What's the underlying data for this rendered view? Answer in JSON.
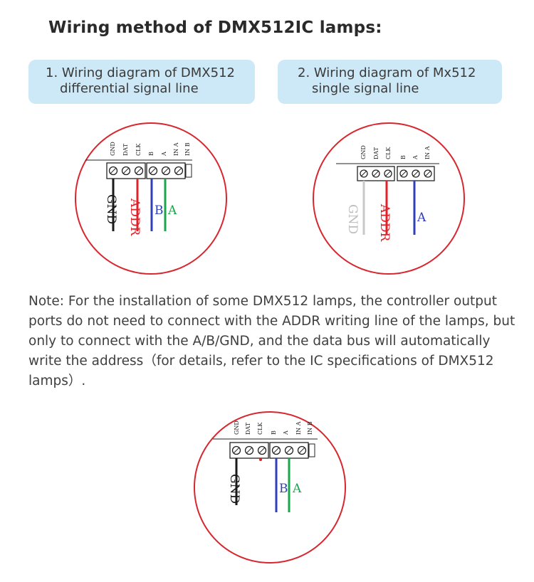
{
  "title": "Wiring method of DMX512IC lamps:",
  "diagram1": {
    "caption_line1": "1. Wiring diagram of DMX512",
    "caption_line2": "differential signal line",
    "terminals": [
      "GND",
      "DAT",
      "CLK",
      "B",
      "A",
      "IN A",
      "IN B"
    ],
    "wires": [
      {
        "label": "GND",
        "color": "#1a1a1a"
      },
      {
        "label": "ADDR",
        "color": "#e0222b"
      },
      {
        "label": "B",
        "color": "#2f3fb8"
      },
      {
        "label": "A",
        "color": "#1aa64a"
      }
    ]
  },
  "diagram2": {
    "caption_line1": "2. Wiring diagram of Mx512",
    "caption_line2": "single signal line",
    "terminals": [
      "GND",
      "DAT",
      "CLK",
      "B",
      "A",
      "IN A"
    ],
    "wires": [
      {
        "label": "GND",
        "color": "#c8c8c8"
      },
      {
        "label": "ADDR",
        "color": "#e0222b"
      },
      {
        "label": "A",
        "color": "#2f3fb8"
      }
    ]
  },
  "note": {
    "line1": "Note: For the installation of some DMX512 lamps, the controller output",
    "line2": "ports do not need to connect with the ADDR writing line of the lamps, but",
    "line3": "only to connect with the A/B/GND, and the data bus will automatically",
    "line4": "write the address（for details, refer to the IC specifications of DMX512",
    "line5": "lamps）."
  },
  "diagram3": {
    "terminals": [
      "GND",
      "DAT",
      "CLK",
      "B",
      "A",
      "IN A",
      "IN B"
    ],
    "wires": [
      {
        "label": "GND",
        "color": "#1a1a1a"
      },
      {
        "label": "B",
        "color": "#2f3fb8"
      },
      {
        "label": "A",
        "color": "#1aa64a"
      }
    ]
  },
  "colors": {
    "circle": "#d8262e",
    "pill_bg": "#cde8f6",
    "red_wire": "#e0222b",
    "blue_wire": "#2f3fb8",
    "green_wire": "#1aa64a"
  }
}
